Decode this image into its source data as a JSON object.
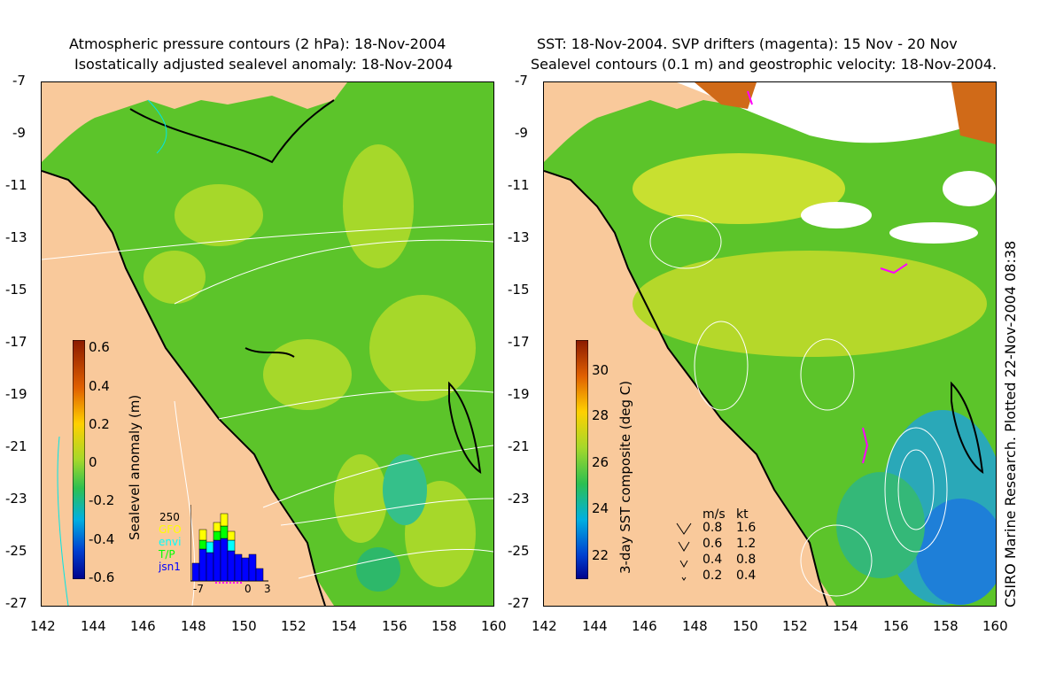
{
  "left_panel": {
    "title_line1": "Atmospheric pressure contours (2 hPa): 18-Nov-2004",
    "title_line2": "Isostatically adjusted sealevel anomaly: 18-Nov-2004",
    "colorbar_label": "Sealevel anomaly (m)",
    "colorbar_ticks": [
      "0.6",
      "0.4",
      "0.2",
      "0",
      "-0.2",
      "-0.4",
      "-0.6"
    ],
    "histogram": {
      "ymax_label": "250",
      "legend": [
        {
          "label": "GFO",
          "color": "#ffff00"
        },
        {
          "label": "envi",
          "color": "#00ffff"
        },
        {
          "label": "T/P",
          "color": "#00ff00"
        },
        {
          "label": "jsn1",
          "color": "#0000ff"
        }
      ],
      "x_ticks": [
        "-7",
        "0",
        "3"
      ]
    }
  },
  "right_panel": {
    "title_line1": "SST: 18-Nov-2004. SVP drifters (magenta): 15 Nov - 20 Nov",
    "title_line2": "Sealevel contours (0.1 m) and geostrophic velocity: 18-Nov-2004.",
    "colorbar_label": "3-day SST composite (deg C)",
    "colorbar_ticks": [
      "30",
      "28",
      "26",
      "24",
      "22"
    ],
    "velocity_legend": {
      "header_ms": "m/s",
      "header_kt": "kt",
      "rows": [
        {
          "ms": "0.8",
          "kt": "1.6"
        },
        {
          "ms": "0.6",
          "kt": "1.2"
        },
        {
          "ms": "0.4",
          "kt": "0.8"
        },
        {
          "ms": "0.2",
          "kt": "0.4"
        }
      ]
    },
    "credit": "CSIRO Marine Research. Plotted 22-Nov-2004 08:38"
  },
  "axes": {
    "y_ticks": [
      "-7",
      "-9",
      "-11",
      "-13",
      "-15",
      "-17",
      "-19",
      "-21",
      "-23",
      "-25",
      "-27"
    ],
    "x_ticks": [
      "142",
      "144",
      "146",
      "148",
      "150",
      "152",
      "154",
      "156",
      "158",
      "160"
    ]
  },
  "colors": {
    "land": "#f9c99b",
    "ocean_green": "#5cc42a",
    "ocean_yellowgreen": "#a6d82a",
    "white_cloud": "#ffffff"
  }
}
